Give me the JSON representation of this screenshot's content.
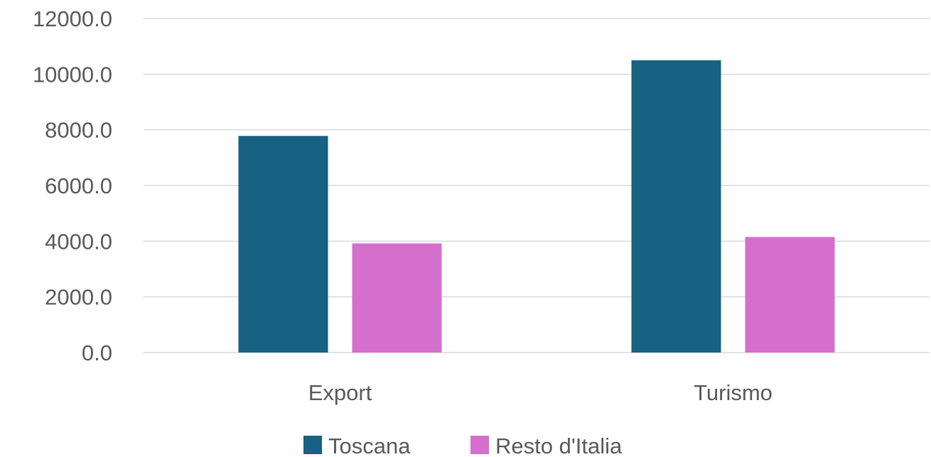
{
  "chart_data": {
    "type": "bar",
    "categories": [
      "Export",
      "Turismo"
    ],
    "series": [
      {
        "name": "Toscana",
        "values": [
          7780,
          10500
        ],
        "color": "#176182"
      },
      {
        "name": "Resto d'Italia",
        "values": [
          3920,
          4150
        ],
        "color": "#d46fcb"
      }
    ],
    "ylim": [
      0,
      12000
    ],
    "yticks": [
      0,
      2000,
      4000,
      6000,
      8000,
      10000,
      12000
    ],
    "ytick_labels": [
      "0.0",
      "2000.0",
      "4000.0",
      "6000.0",
      "8000.0",
      "10000.0",
      "12000.0"
    ],
    "grid": true,
    "legend_position": "bottom",
    "title": "",
    "xlabel": "",
    "ylabel": ""
  }
}
